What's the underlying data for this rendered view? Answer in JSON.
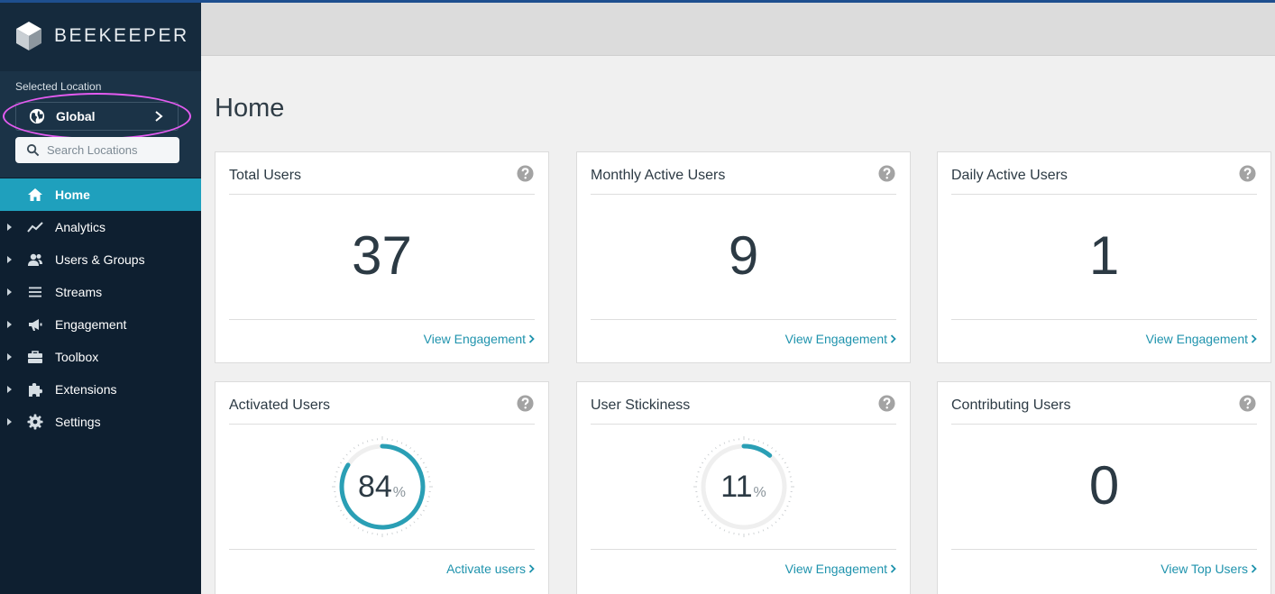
{
  "brand": {
    "name": "BEEKEEPER"
  },
  "location": {
    "label": "Selected Location",
    "current": "Global",
    "search_placeholder": "Search Locations"
  },
  "nav": [
    {
      "label": "Home",
      "icon": "home-icon",
      "active": true
    },
    {
      "label": "Analytics",
      "icon": "analytics-icon"
    },
    {
      "label": "Users & Groups",
      "icon": "users-icon"
    },
    {
      "label": "Streams",
      "icon": "streams-icon"
    },
    {
      "label": "Engagement",
      "icon": "megaphone-icon"
    },
    {
      "label": "Toolbox",
      "icon": "toolbox-icon"
    },
    {
      "label": "Extensions",
      "icon": "puzzle-icon"
    },
    {
      "label": "Settings",
      "icon": "gear-icon"
    }
  ],
  "page": {
    "title": "Home"
  },
  "cards": [
    {
      "title": "Total Users",
      "value": "37",
      "link": "View Engagement"
    },
    {
      "title": "Monthly Active Users",
      "value": "9",
      "link": "View Engagement"
    },
    {
      "title": "Daily Active Users",
      "value": "1",
      "link": "View Engagement"
    },
    {
      "title": "Activated Users",
      "value": "84",
      "unit": "%",
      "percent": 84,
      "link": "Activate users"
    },
    {
      "title": "User Stickiness",
      "value": "11",
      "unit": "%",
      "percent": 11,
      "link": "View Engagement"
    },
    {
      "title": "Contributing Users",
      "value": "0",
      "link": "View Top Users"
    }
  ],
  "colors": {
    "accent": "#1fa0bd",
    "gauge": "#2a9fb5",
    "sidebar": "#0e1f30",
    "highlight": "#e35bf0"
  }
}
